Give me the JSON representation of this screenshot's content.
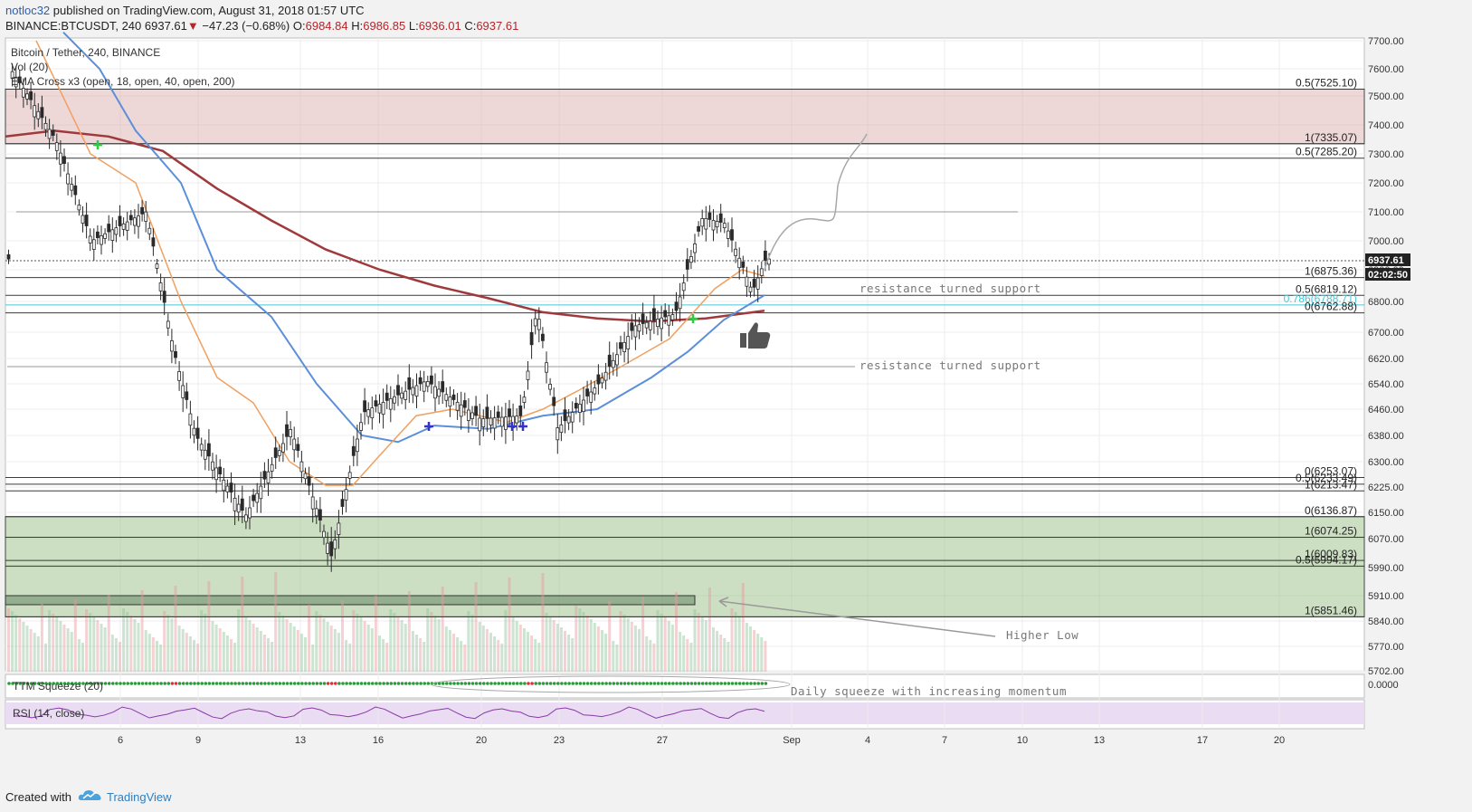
{
  "header": {
    "author": "notloc32",
    "published": "published on TradingView.com, August 31, 2018 01:57 UTC",
    "symbol": "BINANCE:BTCUSDT, 240",
    "last": "6937.61",
    "change_arrow": "▼",
    "change": "−47.23 (−0.68%)",
    "o_label": "O:",
    "o": "6984.84",
    "h_label": "H:",
    "h": "6986.85",
    "l_label": "L:",
    "l": "6936.01",
    "c_label": "C:",
    "c": "6937.61"
  },
  "chart_data": {
    "type": "candlestick",
    "title": "Bitcoin / Tether, 240, BINANCE",
    "indicator_labels": [
      "Vol (20)",
      "EMA Cross x3 (open, 18, open, 40, open, 200)"
    ],
    "squeeze_label": "TTM Squeeze (20)",
    "rsi_label": "RSI (14, close)",
    "squeeze_value": "0.0000",
    "ylim": [
      5700,
      7750
    ],
    "y_ticks": [
      "7700.00",
      "7600.00",
      "7500.00",
      "7400.00",
      "7300.00",
      "7200.00",
      "7100.00",
      "7000.00",
      "6900.00",
      "6800.00",
      "6700.00",
      "6620.00",
      "6540.00",
      "6460.00",
      "6380.00",
      "6300.00",
      "6225.00",
      "6150.00",
      "6070.00",
      "5990.00",
      "5910.00",
      "5840.00",
      "5770.00",
      "5702.00"
    ],
    "x_ticks": [
      "6",
      "9",
      "13",
      "16",
      "20",
      "23",
      "27",
      "Sep",
      "4",
      "7",
      "10",
      "13",
      "17",
      "20"
    ],
    "last_price_tag": "6937.61",
    "countdown_tag": "02:02:50",
    "fib_levels": [
      {
        "label": "0.5(7525.10)",
        "value": 7525.1
      },
      {
        "label": "1(7335.07)",
        "value": 7335.07
      },
      {
        "label": "0.5(7285.20)",
        "value": 7285.2
      },
      {
        "label": "1(6875.36)",
        "value": 6875.36
      },
      {
        "label": "0.5(6819.12)",
        "value": 6819.12
      },
      {
        "label": "0.786(6788.71)",
        "value": 6788.71
      },
      {
        "label": "0(6762.88)",
        "value": 6762.88
      },
      {
        "label": "0(6253.07)",
        "value": 6253.07
      },
      {
        "label": "0.5(6233.49)",
        "value": 6233.49
      },
      {
        "label": "1(6213.47)",
        "value": 6213.47
      },
      {
        "label": "0(6136.87)",
        "value": 6136.87
      },
      {
        "label": "1(6074.25)",
        "value": 6074.25
      },
      {
        "label": "1(6009.83)",
        "value": 6009.83
      },
      {
        "label": "0.5(5994.17)",
        "value": 5994.17
      },
      {
        "label": "1(5851.46)",
        "value": 5851.46
      }
    ],
    "zones": [
      {
        "name": "resistance-zone",
        "from": 7335.07,
        "to": 7525.1,
        "color": "#d9a6a6"
      },
      {
        "name": "support-zone",
        "from": 5851.46,
        "to": 6136.87,
        "color": "#8fb878"
      }
    ],
    "annotations": [
      "resistance turned support",
      "resistance turned support",
      "Higher Low",
      "Daily squeeze with increasing momentum"
    ],
    "ema_colors": {
      "ema18": "#f0a060",
      "ema40": "#5b8fd9",
      "ema200": "#a0393b"
    },
    "candle_colors": {
      "body": "#2a2a2a",
      "up_fill": "#ffffff"
    }
  },
  "footer": {
    "created_with": "Created with",
    "brand": "TradingView"
  }
}
